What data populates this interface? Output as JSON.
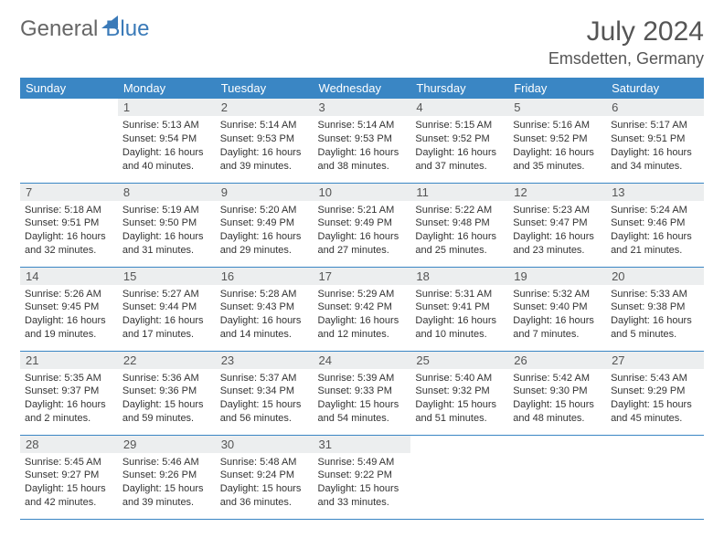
{
  "logo": {
    "part1": "General",
    "part2": "Blue"
  },
  "title": "July 2024",
  "location": "Emsdetten, Germany",
  "colors": {
    "header_bg": "#3a86c4",
    "header_text": "#ffffff",
    "daynum_bg": "#eceeef",
    "border": "#3a86c4",
    "logo_blue": "#3a7ab8"
  },
  "weekdays": [
    "Sunday",
    "Monday",
    "Tuesday",
    "Wednesday",
    "Thursday",
    "Friday",
    "Saturday"
  ],
  "weeks": [
    [
      null,
      {
        "n": "1",
        "sr": "Sunrise: 5:13 AM",
        "ss": "Sunset: 9:54 PM",
        "dl": "Daylight: 16 hours and 40 minutes."
      },
      {
        "n": "2",
        "sr": "Sunrise: 5:14 AM",
        "ss": "Sunset: 9:53 PM",
        "dl": "Daylight: 16 hours and 39 minutes."
      },
      {
        "n": "3",
        "sr": "Sunrise: 5:14 AM",
        "ss": "Sunset: 9:53 PM",
        "dl": "Daylight: 16 hours and 38 minutes."
      },
      {
        "n": "4",
        "sr": "Sunrise: 5:15 AM",
        "ss": "Sunset: 9:52 PM",
        "dl": "Daylight: 16 hours and 37 minutes."
      },
      {
        "n": "5",
        "sr": "Sunrise: 5:16 AM",
        "ss": "Sunset: 9:52 PM",
        "dl": "Daylight: 16 hours and 35 minutes."
      },
      {
        "n": "6",
        "sr": "Sunrise: 5:17 AM",
        "ss": "Sunset: 9:51 PM",
        "dl": "Daylight: 16 hours and 34 minutes."
      }
    ],
    [
      {
        "n": "7",
        "sr": "Sunrise: 5:18 AM",
        "ss": "Sunset: 9:51 PM",
        "dl": "Daylight: 16 hours and 32 minutes."
      },
      {
        "n": "8",
        "sr": "Sunrise: 5:19 AM",
        "ss": "Sunset: 9:50 PM",
        "dl": "Daylight: 16 hours and 31 minutes."
      },
      {
        "n": "9",
        "sr": "Sunrise: 5:20 AM",
        "ss": "Sunset: 9:49 PM",
        "dl": "Daylight: 16 hours and 29 minutes."
      },
      {
        "n": "10",
        "sr": "Sunrise: 5:21 AM",
        "ss": "Sunset: 9:49 PM",
        "dl": "Daylight: 16 hours and 27 minutes."
      },
      {
        "n": "11",
        "sr": "Sunrise: 5:22 AM",
        "ss": "Sunset: 9:48 PM",
        "dl": "Daylight: 16 hours and 25 minutes."
      },
      {
        "n": "12",
        "sr": "Sunrise: 5:23 AM",
        "ss": "Sunset: 9:47 PM",
        "dl": "Daylight: 16 hours and 23 minutes."
      },
      {
        "n": "13",
        "sr": "Sunrise: 5:24 AM",
        "ss": "Sunset: 9:46 PM",
        "dl": "Daylight: 16 hours and 21 minutes."
      }
    ],
    [
      {
        "n": "14",
        "sr": "Sunrise: 5:26 AM",
        "ss": "Sunset: 9:45 PM",
        "dl": "Daylight: 16 hours and 19 minutes."
      },
      {
        "n": "15",
        "sr": "Sunrise: 5:27 AM",
        "ss": "Sunset: 9:44 PM",
        "dl": "Daylight: 16 hours and 17 minutes."
      },
      {
        "n": "16",
        "sr": "Sunrise: 5:28 AM",
        "ss": "Sunset: 9:43 PM",
        "dl": "Daylight: 16 hours and 14 minutes."
      },
      {
        "n": "17",
        "sr": "Sunrise: 5:29 AM",
        "ss": "Sunset: 9:42 PM",
        "dl": "Daylight: 16 hours and 12 minutes."
      },
      {
        "n": "18",
        "sr": "Sunrise: 5:31 AM",
        "ss": "Sunset: 9:41 PM",
        "dl": "Daylight: 16 hours and 10 minutes."
      },
      {
        "n": "19",
        "sr": "Sunrise: 5:32 AM",
        "ss": "Sunset: 9:40 PM",
        "dl": "Daylight: 16 hours and 7 minutes."
      },
      {
        "n": "20",
        "sr": "Sunrise: 5:33 AM",
        "ss": "Sunset: 9:38 PM",
        "dl": "Daylight: 16 hours and 5 minutes."
      }
    ],
    [
      {
        "n": "21",
        "sr": "Sunrise: 5:35 AM",
        "ss": "Sunset: 9:37 PM",
        "dl": "Daylight: 16 hours and 2 minutes."
      },
      {
        "n": "22",
        "sr": "Sunrise: 5:36 AM",
        "ss": "Sunset: 9:36 PM",
        "dl": "Daylight: 15 hours and 59 minutes."
      },
      {
        "n": "23",
        "sr": "Sunrise: 5:37 AM",
        "ss": "Sunset: 9:34 PM",
        "dl": "Daylight: 15 hours and 56 minutes."
      },
      {
        "n": "24",
        "sr": "Sunrise: 5:39 AM",
        "ss": "Sunset: 9:33 PM",
        "dl": "Daylight: 15 hours and 54 minutes."
      },
      {
        "n": "25",
        "sr": "Sunrise: 5:40 AM",
        "ss": "Sunset: 9:32 PM",
        "dl": "Daylight: 15 hours and 51 minutes."
      },
      {
        "n": "26",
        "sr": "Sunrise: 5:42 AM",
        "ss": "Sunset: 9:30 PM",
        "dl": "Daylight: 15 hours and 48 minutes."
      },
      {
        "n": "27",
        "sr": "Sunrise: 5:43 AM",
        "ss": "Sunset: 9:29 PM",
        "dl": "Daylight: 15 hours and 45 minutes."
      }
    ],
    [
      {
        "n": "28",
        "sr": "Sunrise: 5:45 AM",
        "ss": "Sunset: 9:27 PM",
        "dl": "Daylight: 15 hours and 42 minutes."
      },
      {
        "n": "29",
        "sr": "Sunrise: 5:46 AM",
        "ss": "Sunset: 9:26 PM",
        "dl": "Daylight: 15 hours and 39 minutes."
      },
      {
        "n": "30",
        "sr": "Sunrise: 5:48 AM",
        "ss": "Sunset: 9:24 PM",
        "dl": "Daylight: 15 hours and 36 minutes."
      },
      {
        "n": "31",
        "sr": "Sunrise: 5:49 AM",
        "ss": "Sunset: 9:22 PM",
        "dl": "Daylight: 15 hours and 33 minutes."
      },
      null,
      null,
      null
    ]
  ]
}
